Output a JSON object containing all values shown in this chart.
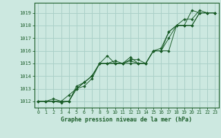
{
  "title": "Graphe pression niveau de la mer (hPa)",
  "bg_color": "#cce8e0",
  "grid_color": "#aad0c8",
  "line_color": "#1a5c28",
  "marker_color": "#1a5c28",
  "ylim": [
    1011.5,
    1019.8
  ],
  "xlim": [
    -0.5,
    23.5
  ],
  "yticks": [
    1012,
    1013,
    1014,
    1015,
    1016,
    1017,
    1018,
    1019
  ],
  "xticks": [
    0,
    1,
    2,
    3,
    4,
    5,
    6,
    7,
    8,
    9,
    10,
    11,
    12,
    13,
    14,
    15,
    16,
    17,
    18,
    19,
    20,
    21,
    22,
    23
  ],
  "series": [
    [
      1012.0,
      1012.0,
      1012.0,
      1012.0,
      1012.0,
      1013.0,
      1013.2,
      1013.8,
      1015.0,
      1015.6,
      1015.0,
      1015.0,
      1015.3,
      1015.3,
      1015.0,
      1016.0,
      1016.0,
      1016.0,
      1018.0,
      1018.0,
      1019.2,
      1019.0,
      1019.0,
      1019.0
    ],
    [
      1012.0,
      1012.0,
      1012.0,
      1012.0,
      1012.0,
      1013.2,
      1013.5,
      1014.0,
      1015.0,
      1015.0,
      1015.0,
      1015.0,
      1015.0,
      1015.0,
      1015.0,
      1016.0,
      1016.0,
      1017.5,
      1018.0,
      1018.0,
      1018.0,
      1019.0,
      1019.0,
      1019.0
    ],
    [
      1012.0,
      1012.0,
      1012.2,
      1012.0,
      1012.5,
      1013.0,
      1013.5,
      1014.0,
      1015.0,
      1015.0,
      1015.2,
      1015.0,
      1015.2,
      1015.0,
      1015.0,
      1016.0,
      1016.0,
      1017.0,
      1018.0,
      1018.5,
      1018.5,
      1019.2,
      1019.0,
      1019.0
    ],
    [
      1012.0,
      1012.0,
      1012.0,
      1011.9,
      1012.0,
      1013.0,
      1013.5,
      1014.0,
      1015.0,
      1015.0,
      1015.0,
      1015.0,
      1015.5,
      1015.0,
      1015.0,
      1016.0,
      1016.2,
      1017.5,
      1018.0,
      1018.0,
      1018.0,
      1019.0,
      1019.0,
      1019.0
    ]
  ]
}
